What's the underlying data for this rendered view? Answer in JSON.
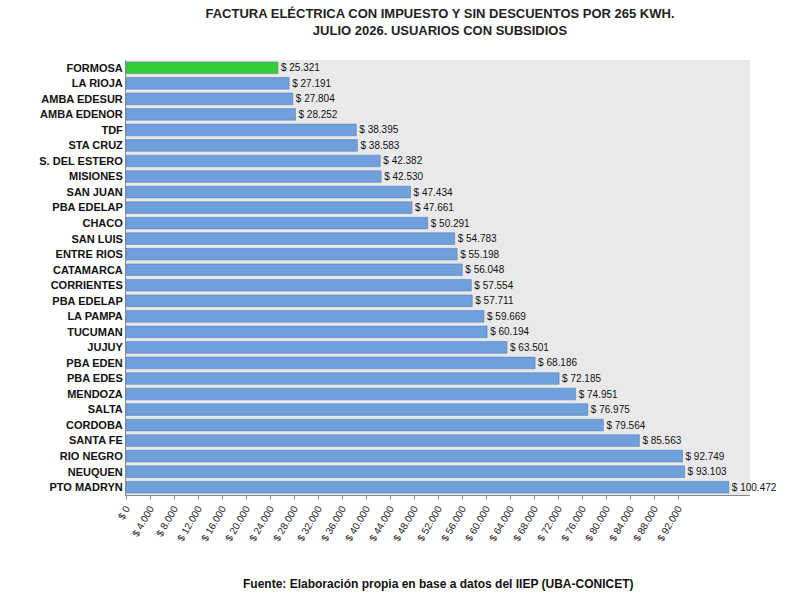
{
  "chart_data": {
    "type": "bar",
    "orientation": "horizontal",
    "title": "FACTURA ELÉCTRICA CON IMPUESTO Y SIN DESCUENTOS POR 265 KWH.",
    "subtitle": "JULIO 2026. USUARIOS CON SUBSIDIOS",
    "source": "Fuente: Elaboración propia en base a datos del IIEP (UBA-CONICET)",
    "categories": [
      "FORMOSA",
      "LA RIOJA",
      "AMBA EDESUR",
      "AMBA EDENOR",
      "TDF",
      "STA CRUZ",
      "S. DEL ESTERO",
      "MISIONES",
      "SAN JUAN",
      "PBA EDELAP",
      "CHACO",
      "SAN LUIS",
      "ENTRE RIOS",
      "CATAMARCA",
      "CORRIENTES",
      "PBA EDELAP",
      "LA PAMPA",
      "TUCUMAN",
      "JUJUY",
      "PBA EDEN",
      "PBA EDES",
      "MENDOZA",
      "SALTA",
      "CORDOBA",
      "SANTA FE",
      "RIO NEGRO",
      "NEUQUEN",
      "PTO MADRYN"
    ],
    "values": [
      25321,
      27191,
      27804,
      28252,
      38395,
      38583,
      42382,
      42530,
      47434,
      47661,
      50291,
      54783,
      55198,
      56048,
      57554,
      57711,
      59669,
      60194,
      63501,
      68186,
      72185,
      74951,
      76975,
      79564,
      85563,
      92749,
      93103,
      100472
    ],
    "value_labels": [
      "$ 25.321",
      "$ 27.191",
      "$ 27.804",
      "$ 28.252",
      "$ 38.395",
      "$ 38.583",
      "$ 42.382",
      "$ 42.530",
      "$ 47.434",
      "$ 47.661",
      "$ 50.291",
      "$ 54.783",
      "$ 55.198",
      "$ 56.048",
      "$ 57.554",
      "$ 57.711",
      "$ 59.669",
      "$ 60.194",
      "$ 63.501",
      "$ 68.186",
      "$ 72.185",
      "$ 74.951",
      "$ 76.975",
      "$ 79.564",
      "$ 85.563",
      "$ 92.749",
      "$ 93.103",
      "$ 100.472"
    ],
    "colors": [
      "#33cc33",
      "#6fa0dc",
      "#6fa0dc",
      "#6fa0dc",
      "#6fa0dc",
      "#6fa0dc",
      "#6fa0dc",
      "#6fa0dc",
      "#6fa0dc",
      "#6fa0dc",
      "#6fa0dc",
      "#6fa0dc",
      "#6fa0dc",
      "#6fa0dc",
      "#6fa0dc",
      "#6fa0dc",
      "#6fa0dc",
      "#6fa0dc",
      "#6fa0dc",
      "#6fa0dc",
      "#6fa0dc",
      "#6fa0dc",
      "#6fa0dc",
      "#6fa0dc",
      "#6fa0dc",
      "#6fa0dc",
      "#6fa0dc",
      "#6fa0dc"
    ],
    "data_labels": true,
    "grid": false,
    "xlim": [
      0,
      104000
    ],
    "xticks": [
      {
        "value": 0,
        "label": "$ 0"
      },
      {
        "value": 4000,
        "label": "$ 4.000"
      },
      {
        "value": 8000,
        "label": "$ 8.000"
      },
      {
        "value": 12000,
        "label": "$ 12.000"
      },
      {
        "value": 16000,
        "label": "$ 16.000"
      },
      {
        "value": 20000,
        "label": "$ 20.000"
      },
      {
        "value": 24000,
        "label": "$ 24.000"
      },
      {
        "value": 28000,
        "label": "$ 28.000"
      },
      {
        "value": 32000,
        "label": "$ 32.000"
      },
      {
        "value": 36000,
        "label": "$ 36.000"
      },
      {
        "value": 40000,
        "label": "$ 40.000"
      },
      {
        "value": 44000,
        "label": "$ 44.000"
      },
      {
        "value": 48000,
        "label": "$ 48.000"
      },
      {
        "value": 52000,
        "label": "$ 52.000"
      },
      {
        "value": 56000,
        "label": "$ 56.000"
      },
      {
        "value": 60000,
        "label": "$ 60.000"
      },
      {
        "value": 64000,
        "label": "$ 64.000"
      },
      {
        "value": 68000,
        "label": "$ 68.000"
      },
      {
        "value": 72000,
        "label": "$ 72.000"
      },
      {
        "value": 76000,
        "label": "$ 76.000"
      },
      {
        "value": 80000,
        "label": "$ 80.000"
      },
      {
        "value": 84000,
        "label": "$ 84.000"
      },
      {
        "value": 88000,
        "label": "$ 88.000"
      },
      {
        "value": 92000,
        "label": "$ 92.000"
      }
    ]
  }
}
